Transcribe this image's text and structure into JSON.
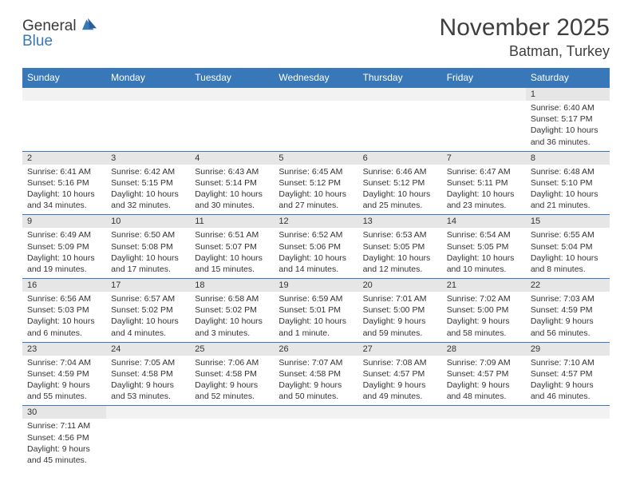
{
  "brand": {
    "text_general": "General",
    "text_blue": "Blue",
    "sail_color": "#3878b8",
    "text_color": "#3a3a3a"
  },
  "header": {
    "month_title": "November 2025",
    "location": "Batman, Turkey"
  },
  "colors": {
    "header_bg": "#3878b8",
    "header_text": "#ffffff",
    "daynum_bg": "#e6e6e6",
    "empty_bg": "#f2f2f2",
    "border": "#3878b8",
    "body_text": "#333333"
  },
  "day_headers": [
    "Sunday",
    "Monday",
    "Tuesday",
    "Wednesday",
    "Thursday",
    "Friday",
    "Saturday"
  ],
  "weeks": [
    [
      null,
      null,
      null,
      null,
      null,
      null,
      {
        "n": "1",
        "sr": "Sunrise: 6:40 AM",
        "ss": "Sunset: 5:17 PM",
        "dl1": "Daylight: 10 hours",
        "dl2": "and 36 minutes."
      }
    ],
    [
      {
        "n": "2",
        "sr": "Sunrise: 6:41 AM",
        "ss": "Sunset: 5:16 PM",
        "dl1": "Daylight: 10 hours",
        "dl2": "and 34 minutes."
      },
      {
        "n": "3",
        "sr": "Sunrise: 6:42 AM",
        "ss": "Sunset: 5:15 PM",
        "dl1": "Daylight: 10 hours",
        "dl2": "and 32 minutes."
      },
      {
        "n": "4",
        "sr": "Sunrise: 6:43 AM",
        "ss": "Sunset: 5:14 PM",
        "dl1": "Daylight: 10 hours",
        "dl2": "and 30 minutes."
      },
      {
        "n": "5",
        "sr": "Sunrise: 6:45 AM",
        "ss": "Sunset: 5:12 PM",
        "dl1": "Daylight: 10 hours",
        "dl2": "and 27 minutes."
      },
      {
        "n": "6",
        "sr": "Sunrise: 6:46 AM",
        "ss": "Sunset: 5:12 PM",
        "dl1": "Daylight: 10 hours",
        "dl2": "and 25 minutes."
      },
      {
        "n": "7",
        "sr": "Sunrise: 6:47 AM",
        "ss": "Sunset: 5:11 PM",
        "dl1": "Daylight: 10 hours",
        "dl2": "and 23 minutes."
      },
      {
        "n": "8",
        "sr": "Sunrise: 6:48 AM",
        "ss": "Sunset: 5:10 PM",
        "dl1": "Daylight: 10 hours",
        "dl2": "and 21 minutes."
      }
    ],
    [
      {
        "n": "9",
        "sr": "Sunrise: 6:49 AM",
        "ss": "Sunset: 5:09 PM",
        "dl1": "Daylight: 10 hours",
        "dl2": "and 19 minutes."
      },
      {
        "n": "10",
        "sr": "Sunrise: 6:50 AM",
        "ss": "Sunset: 5:08 PM",
        "dl1": "Daylight: 10 hours",
        "dl2": "and 17 minutes."
      },
      {
        "n": "11",
        "sr": "Sunrise: 6:51 AM",
        "ss": "Sunset: 5:07 PM",
        "dl1": "Daylight: 10 hours",
        "dl2": "and 15 minutes."
      },
      {
        "n": "12",
        "sr": "Sunrise: 6:52 AM",
        "ss": "Sunset: 5:06 PM",
        "dl1": "Daylight: 10 hours",
        "dl2": "and 14 minutes."
      },
      {
        "n": "13",
        "sr": "Sunrise: 6:53 AM",
        "ss": "Sunset: 5:05 PM",
        "dl1": "Daylight: 10 hours",
        "dl2": "and 12 minutes."
      },
      {
        "n": "14",
        "sr": "Sunrise: 6:54 AM",
        "ss": "Sunset: 5:05 PM",
        "dl1": "Daylight: 10 hours",
        "dl2": "and 10 minutes."
      },
      {
        "n": "15",
        "sr": "Sunrise: 6:55 AM",
        "ss": "Sunset: 5:04 PM",
        "dl1": "Daylight: 10 hours",
        "dl2": "and 8 minutes."
      }
    ],
    [
      {
        "n": "16",
        "sr": "Sunrise: 6:56 AM",
        "ss": "Sunset: 5:03 PM",
        "dl1": "Daylight: 10 hours",
        "dl2": "and 6 minutes."
      },
      {
        "n": "17",
        "sr": "Sunrise: 6:57 AM",
        "ss": "Sunset: 5:02 PM",
        "dl1": "Daylight: 10 hours",
        "dl2": "and 4 minutes."
      },
      {
        "n": "18",
        "sr": "Sunrise: 6:58 AM",
        "ss": "Sunset: 5:02 PM",
        "dl1": "Daylight: 10 hours",
        "dl2": "and 3 minutes."
      },
      {
        "n": "19",
        "sr": "Sunrise: 6:59 AM",
        "ss": "Sunset: 5:01 PM",
        "dl1": "Daylight: 10 hours",
        "dl2": "and 1 minute."
      },
      {
        "n": "20",
        "sr": "Sunrise: 7:01 AM",
        "ss": "Sunset: 5:00 PM",
        "dl1": "Daylight: 9 hours",
        "dl2": "and 59 minutes."
      },
      {
        "n": "21",
        "sr": "Sunrise: 7:02 AM",
        "ss": "Sunset: 5:00 PM",
        "dl1": "Daylight: 9 hours",
        "dl2": "and 58 minutes."
      },
      {
        "n": "22",
        "sr": "Sunrise: 7:03 AM",
        "ss": "Sunset: 4:59 PM",
        "dl1": "Daylight: 9 hours",
        "dl2": "and 56 minutes."
      }
    ],
    [
      {
        "n": "23",
        "sr": "Sunrise: 7:04 AM",
        "ss": "Sunset: 4:59 PM",
        "dl1": "Daylight: 9 hours",
        "dl2": "and 55 minutes."
      },
      {
        "n": "24",
        "sr": "Sunrise: 7:05 AM",
        "ss": "Sunset: 4:58 PM",
        "dl1": "Daylight: 9 hours",
        "dl2": "and 53 minutes."
      },
      {
        "n": "25",
        "sr": "Sunrise: 7:06 AM",
        "ss": "Sunset: 4:58 PM",
        "dl1": "Daylight: 9 hours",
        "dl2": "and 52 minutes."
      },
      {
        "n": "26",
        "sr": "Sunrise: 7:07 AM",
        "ss": "Sunset: 4:58 PM",
        "dl1": "Daylight: 9 hours",
        "dl2": "and 50 minutes."
      },
      {
        "n": "27",
        "sr": "Sunrise: 7:08 AM",
        "ss": "Sunset: 4:57 PM",
        "dl1": "Daylight: 9 hours",
        "dl2": "and 49 minutes."
      },
      {
        "n": "28",
        "sr": "Sunrise: 7:09 AM",
        "ss": "Sunset: 4:57 PM",
        "dl1": "Daylight: 9 hours",
        "dl2": "and 48 minutes."
      },
      {
        "n": "29",
        "sr": "Sunrise: 7:10 AM",
        "ss": "Sunset: 4:57 PM",
        "dl1": "Daylight: 9 hours",
        "dl2": "and 46 minutes."
      }
    ],
    [
      {
        "n": "30",
        "sr": "Sunrise: 7:11 AM",
        "ss": "Sunset: 4:56 PM",
        "dl1": "Daylight: 9 hours",
        "dl2": "and 45 minutes."
      },
      null,
      null,
      null,
      null,
      null,
      null
    ]
  ]
}
